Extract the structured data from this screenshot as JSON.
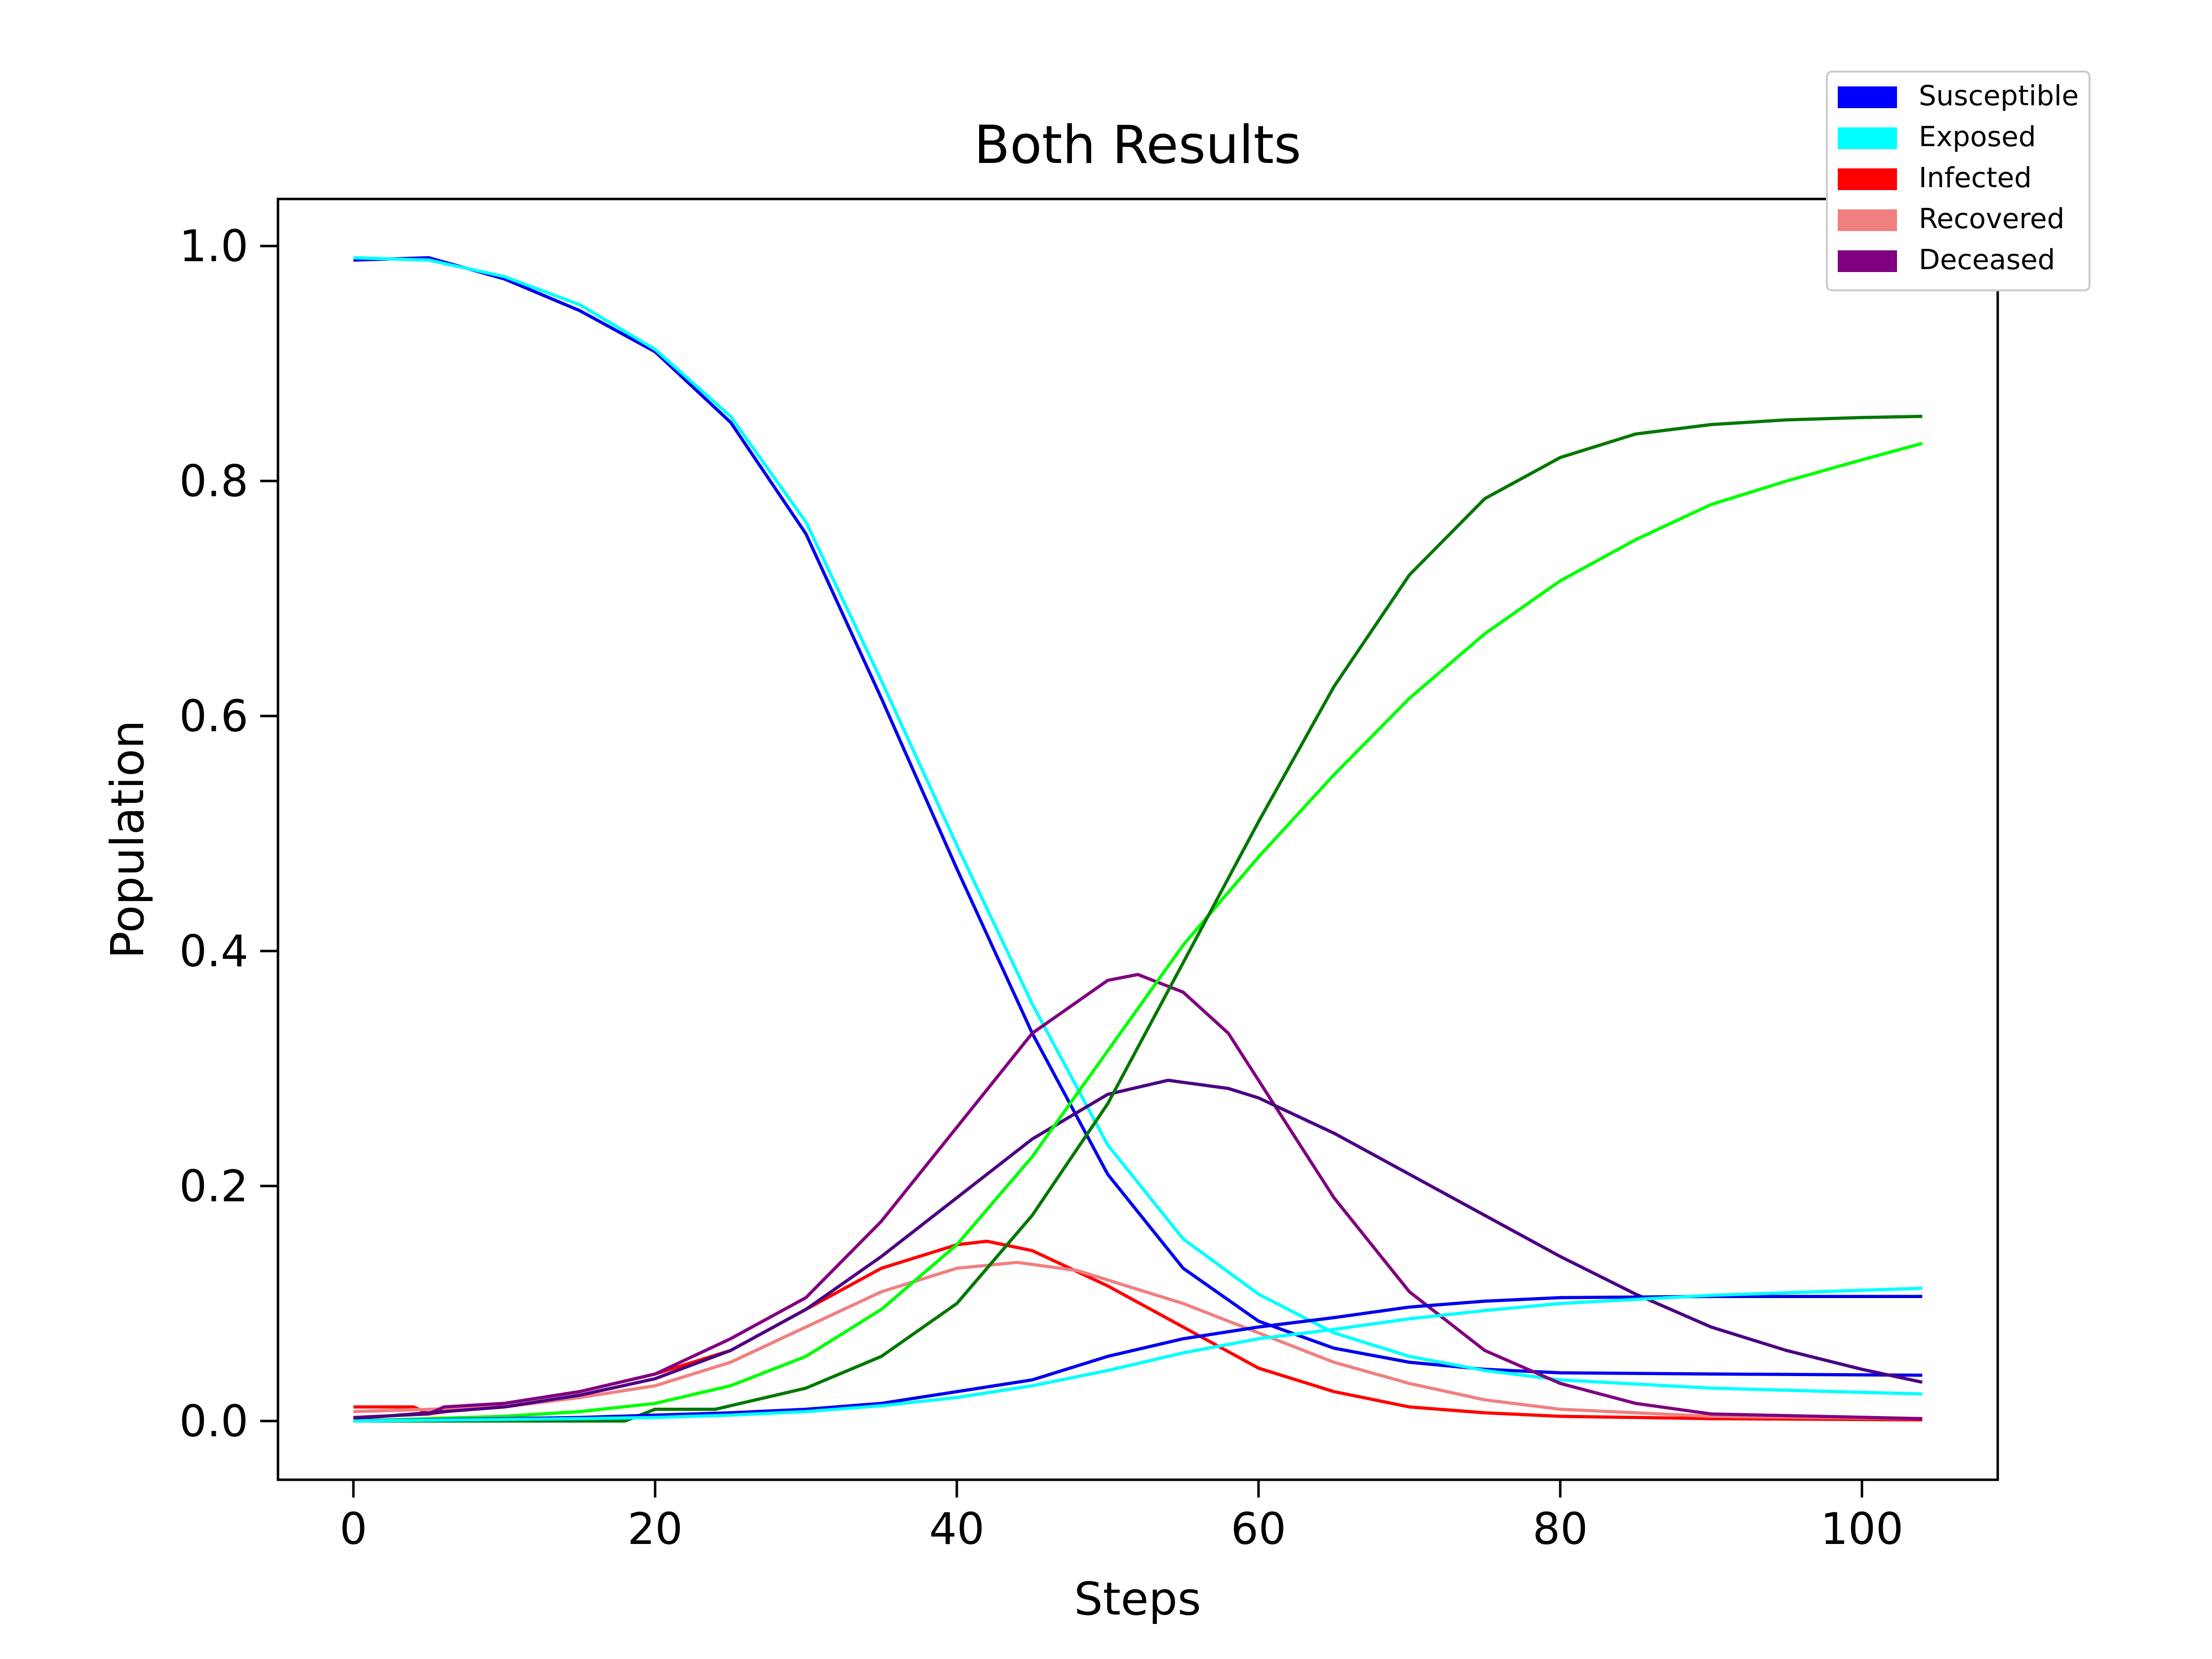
{
  "chart_data": {
    "type": "line",
    "title": "Both Results",
    "xlabel": "Steps",
    "ylabel": "Population",
    "xlim": [
      -5,
      109
    ],
    "ylim": [
      -0.05,
      1.04
    ],
    "x_ticks": [
      0,
      20,
      40,
      60,
      80,
      100
    ],
    "y_ticks": [
      0.0,
      0.2,
      0.4,
      0.6,
      0.8,
      1.0
    ],
    "x_tick_labels": [
      "0",
      "20",
      "40",
      "60",
      "80",
      "100"
    ],
    "y_tick_labels": [
      "0.0",
      "0.2",
      "0.4",
      "0.6",
      "0.8",
      "1.0"
    ],
    "grid": false,
    "legend": {
      "placement": "top-right",
      "entries": [
        {
          "label": "Susceptible",
          "color": "#0000ff"
        },
        {
          "label": "Exposed",
          "color": "#00ffff"
        },
        {
          "label": "Infected",
          "color": "#ff0000"
        },
        {
          "label": "Recovered",
          "color": "#f08080"
        },
        {
          "label": "Deceased",
          "color": "#800080"
        }
      ]
    },
    "series": [
      {
        "color": "#0000ee",
        "points": [
          [
            0,
            0.988
          ],
          [
            5,
            0.99
          ],
          [
            10,
            0.972
          ],
          [
            15,
            0.945
          ],
          [
            20,
            0.91
          ],
          [
            25,
            0.85
          ],
          [
            30,
            0.755
          ],
          [
            35,
            0.615
          ],
          [
            40,
            0.47
          ],
          [
            45,
            0.33
          ],
          [
            50,
            0.21
          ],
          [
            55,
            0.13
          ],
          [
            60,
            0.085
          ],
          [
            65,
            0.062
          ],
          [
            70,
            0.05
          ],
          [
            75,
            0.044
          ],
          [
            80,
            0.041
          ],
          [
            90,
            0.04
          ],
          [
            104,
            0.039
          ]
        ]
      },
      {
        "color": "#00ffff",
        "points": [
          [
            0,
            0.99
          ],
          [
            5,
            0.988
          ],
          [
            10,
            0.974
          ],
          [
            15,
            0.95
          ],
          [
            20,
            0.912
          ],
          [
            25,
            0.855
          ],
          [
            30,
            0.765
          ],
          [
            35,
            0.63
          ],
          [
            40,
            0.49
          ],
          [
            45,
            0.355
          ],
          [
            50,
            0.235
          ],
          [
            55,
            0.155
          ],
          [
            60,
            0.108
          ],
          [
            65,
            0.075
          ],
          [
            70,
            0.055
          ],
          [
            75,
            0.043
          ],
          [
            80,
            0.035
          ],
          [
            90,
            0.028
          ],
          [
            104,
            0.023
          ]
        ]
      },
      {
        "color": "#ff0000",
        "points": [
          [
            0,
            0.012
          ],
          [
            4,
            0.012
          ],
          [
            5,
            0.006
          ],
          [
            10,
            0.015
          ],
          [
            15,
            0.025
          ],
          [
            20,
            0.04
          ],
          [
            25,
            0.06
          ],
          [
            30,
            0.095
          ],
          [
            35,
            0.13
          ],
          [
            40,
            0.15
          ],
          [
            42,
            0.153
          ],
          [
            45,
            0.145
          ],
          [
            50,
            0.115
          ],
          [
            55,
            0.08
          ],
          [
            60,
            0.045
          ],
          [
            65,
            0.025
          ],
          [
            70,
            0.012
          ],
          [
            75,
            0.007
          ],
          [
            80,
            0.004
          ],
          [
            90,
            0.002
          ],
          [
            104,
            0.001
          ]
        ]
      },
      {
        "color": "#f08080",
        "points": [
          [
            0,
            0.008
          ],
          [
            10,
            0.012
          ],
          [
            15,
            0.02
          ],
          [
            20,
            0.03
          ],
          [
            25,
            0.05
          ],
          [
            30,
            0.08
          ],
          [
            35,
            0.11
          ],
          [
            40,
            0.13
          ],
          [
            44,
            0.135
          ],
          [
            48,
            0.128
          ],
          [
            50,
            0.12
          ],
          [
            55,
            0.1
          ],
          [
            60,
            0.075
          ],
          [
            65,
            0.05
          ],
          [
            70,
            0.032
          ],
          [
            75,
            0.018
          ],
          [
            80,
            0.01
          ],
          [
            90,
            0.004
          ],
          [
            104,
            0.002
          ]
        ]
      },
      {
        "color": "#800080",
        "points": [
          [
            0,
            0.003
          ],
          [
            5,
            0.006
          ],
          [
            6,
            0.012
          ],
          [
            10,
            0.015
          ],
          [
            15,
            0.025
          ],
          [
            20,
            0.04
          ],
          [
            25,
            0.07
          ],
          [
            30,
            0.105
          ],
          [
            35,
            0.17
          ],
          [
            40,
            0.25
          ],
          [
            45,
            0.33
          ],
          [
            50,
            0.375
          ],
          [
            52,
            0.38
          ],
          [
            55,
            0.365
          ],
          [
            58,
            0.33
          ],
          [
            60,
            0.29
          ],
          [
            65,
            0.19
          ],
          [
            70,
            0.11
          ],
          [
            75,
            0.06
          ],
          [
            80,
            0.032
          ],
          [
            85,
            0.015
          ],
          [
            90,
            0.006
          ],
          [
            104,
            0.002
          ]
        ]
      },
      {
        "color": "#4b0082",
        "points": [
          [
            0,
            0.002
          ],
          [
            10,
            0.012
          ],
          [
            15,
            0.022
          ],
          [
            20,
            0.036
          ],
          [
            25,
            0.06
          ],
          [
            30,
            0.095
          ],
          [
            35,
            0.14
          ],
          [
            40,
            0.19
          ],
          [
            45,
            0.24
          ],
          [
            50,
            0.278
          ],
          [
            54,
            0.29
          ],
          [
            58,
            0.283
          ],
          [
            60,
            0.275
          ],
          [
            65,
            0.245
          ],
          [
            70,
            0.21
          ],
          [
            75,
            0.175
          ],
          [
            80,
            0.14
          ],
          [
            85,
            0.108
          ],
          [
            90,
            0.08
          ],
          [
            95,
            0.06
          ],
          [
            100,
            0.044
          ],
          [
            104,
            0.033
          ]
        ]
      },
      {
        "color": "#00ff00",
        "points": [
          [
            0,
            0.0
          ],
          [
            10,
            0.004
          ],
          [
            15,
            0.008
          ],
          [
            20,
            0.015
          ],
          [
            25,
            0.03
          ],
          [
            30,
            0.055
          ],
          [
            35,
            0.095
          ],
          [
            40,
            0.15
          ],
          [
            45,
            0.225
          ],
          [
            50,
            0.315
          ],
          [
            55,
            0.405
          ],
          [
            60,
            0.48
          ],
          [
            65,
            0.55
          ],
          [
            70,
            0.615
          ],
          [
            75,
            0.67
          ],
          [
            80,
            0.715
          ],
          [
            85,
            0.75
          ],
          [
            90,
            0.78
          ],
          [
            95,
            0.8
          ],
          [
            100,
            0.818
          ],
          [
            104,
            0.832
          ]
        ]
      },
      {
        "color": "#007700",
        "points": [
          [
            0,
            0.0
          ],
          [
            18,
            0.0
          ],
          [
            20,
            0.01
          ],
          [
            24,
            0.01
          ],
          [
            30,
            0.028
          ],
          [
            35,
            0.055
          ],
          [
            40,
            0.1
          ],
          [
            45,
            0.175
          ],
          [
            50,
            0.27
          ],
          [
            55,
            0.39
          ],
          [
            60,
            0.51
          ],
          [
            65,
            0.625
          ],
          [
            70,
            0.72
          ],
          [
            75,
            0.785
          ],
          [
            80,
            0.82
          ],
          [
            85,
            0.84
          ],
          [
            90,
            0.848
          ],
          [
            95,
            0.852
          ],
          [
            100,
            0.854
          ],
          [
            104,
            0.855
          ]
        ]
      },
      {
        "color": "#0000ee",
        "points": [
          [
            0,
            0.0
          ],
          [
            10,
            0.002
          ],
          [
            15,
            0.003
          ],
          [
            20,
            0.005
          ],
          [
            25,
            0.007
          ],
          [
            30,
            0.01
          ],
          [
            35,
            0.015
          ],
          [
            40,
            0.025
          ],
          [
            45,
            0.035
          ],
          [
            50,
            0.055
          ],
          [
            55,
            0.07
          ],
          [
            60,
            0.08
          ],
          [
            65,
            0.088
          ],
          [
            70,
            0.097
          ],
          [
            75,
            0.102
          ],
          [
            80,
            0.105
          ],
          [
            90,
            0.106
          ],
          [
            104,
            0.106
          ]
        ]
      },
      {
        "color": "#00ffff",
        "points": [
          [
            0,
            0.0
          ],
          [
            15,
            0.002
          ],
          [
            20,
            0.003
          ],
          [
            25,
            0.005
          ],
          [
            30,
            0.008
          ],
          [
            35,
            0.013
          ],
          [
            40,
            0.02
          ],
          [
            45,
            0.03
          ],
          [
            50,
            0.043
          ],
          [
            55,
            0.058
          ],
          [
            60,
            0.07
          ],
          [
            65,
            0.078
          ],
          [
            70,
            0.087
          ],
          [
            75,
            0.094
          ],
          [
            80,
            0.1
          ],
          [
            90,
            0.107
          ],
          [
            104,
            0.113
          ]
        ]
      }
    ]
  }
}
